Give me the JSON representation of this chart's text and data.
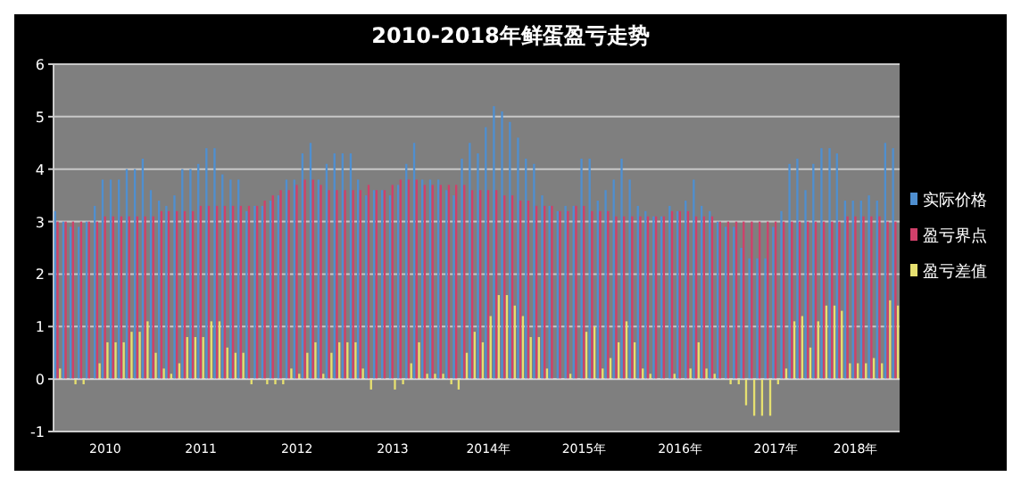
{
  "chart_data": {
    "type": "bar",
    "title": "2010-2018年鲜蛋盈亏走势",
    "x": [
      "2010-01",
      "2010-02",
      "2010-03",
      "2010-04",
      "2010-05",
      "2010-06",
      "2010-07",
      "2010-08",
      "2010-09",
      "2010-10",
      "2010-11",
      "2010-12",
      "2011-01",
      "2011-02",
      "2011-03",
      "2011-04",
      "2011-05",
      "2011-06",
      "2011-07",
      "2011-08",
      "2011-09",
      "2011-10",
      "2011-11",
      "2011-12",
      "2012-01",
      "2012-02",
      "2012-03",
      "2012-04",
      "2012-05",
      "2012-06",
      "2012-07",
      "2012-08",
      "2012-09",
      "2012-10",
      "2012-11",
      "2012-12",
      "2013-01",
      "2013-02",
      "2013-03",
      "2013-04",
      "2013-05",
      "2013-06",
      "2013-07",
      "2013-08",
      "2013-09",
      "2013-10",
      "2013-11",
      "2013-12",
      "2014-01",
      "2014-02",
      "2014-03",
      "2014-04",
      "2014-05",
      "2014-06",
      "2014-07",
      "2014-08",
      "2014-09",
      "2014-10",
      "2014-11",
      "2014-12",
      "2015-01",
      "2015-02",
      "2015-03",
      "2015-04",
      "2015-05",
      "2015-06",
      "2015-07",
      "2015-08",
      "2015-09",
      "2015-10",
      "2015-11",
      "2015-12",
      "2016-01",
      "2016-02",
      "2016-03",
      "2016-04",
      "2016-05",
      "2016-06",
      "2016-07",
      "2016-08",
      "2016-09",
      "2016-10",
      "2016-11",
      "2016-12",
      "2017-01",
      "2017-02",
      "2017-03",
      "2017-04",
      "2017-05",
      "2017-06",
      "2017-07",
      "2017-08",
      "2017-09",
      "2017-10",
      "2017-11",
      "2017-12",
      "2018-01",
      "2018-02",
      "2018-03",
      "2018-04",
      "2018-05",
      "2018-06",
      "2018-07",
      "2018-08",
      "2018-09",
      "2018-10"
    ],
    "series": [
      {
        "name": "实际价格",
        "color": "#4f8fd0",
        "values": [
          3.2,
          3.0,
          2.9,
          2.9,
          3.0,
          3.3,
          3.8,
          3.8,
          3.8,
          4.0,
          4.0,
          4.2,
          3.6,
          3.4,
          3.3,
          3.5,
          4.0,
          4.0,
          4.1,
          4.4,
          4.4,
          3.9,
          3.8,
          3.8,
          3.2,
          3.3,
          3.3,
          3.4,
          3.5,
          3.8,
          3.8,
          4.3,
          4.5,
          3.8,
          4.1,
          4.3,
          4.3,
          4.3,
          3.8,
          3.5,
          3.6,
          3.6,
          3.5,
          3.7,
          4.1,
          4.5,
          3.8,
          3.8,
          3.8,
          3.6,
          3.5,
          4.2,
          4.5,
          4.3,
          4.8,
          5.2,
          5.1,
          4.9,
          4.6,
          4.2,
          4.1,
          3.5,
          3.3,
          3.2,
          3.3,
          3.3,
          4.2,
          4.2,
          3.4,
          3.6,
          3.8,
          4.2,
          3.8,
          3.3,
          3.2,
          3.1,
          3.1,
          3.3,
          3.2,
          3.4,
          3.8,
          3.3,
          3.2,
          3.0,
          2.9,
          2.9,
          2.5,
          2.3,
          2.3,
          2.3,
          2.9,
          3.2,
          4.1,
          4.2,
          3.6,
          4.1,
          4.4,
          4.4,
          4.3,
          3.4,
          3.4,
          3.4,
          3.5,
          3.4,
          4.5,
          4.4
        ]
      },
      {
        "name": "盈亏界点",
        "color": "#d0406a",
        "values": [
          3.0,
          3.0,
          3.0,
          3.0,
          3.0,
          3.0,
          3.1,
          3.1,
          3.1,
          3.1,
          3.1,
          3.1,
          3.1,
          3.2,
          3.2,
          3.2,
          3.2,
          3.2,
          3.3,
          3.3,
          3.3,
          3.3,
          3.3,
          3.3,
          3.3,
          3.3,
          3.4,
          3.5,
          3.6,
          3.6,
          3.7,
          3.8,
          3.8,
          3.7,
          3.6,
          3.6,
          3.6,
          3.6,
          3.6,
          3.7,
          3.6,
          3.6,
          3.7,
          3.8,
          3.8,
          3.8,
          3.7,
          3.7,
          3.7,
          3.7,
          3.7,
          3.7,
          3.6,
          3.6,
          3.6,
          3.6,
          3.5,
          3.5,
          3.4,
          3.4,
          3.3,
          3.3,
          3.3,
          3.2,
          3.2,
          3.3,
          3.3,
          3.2,
          3.2,
          3.2,
          3.1,
          3.1,
          3.1,
          3.1,
          3.1,
          3.1,
          3.1,
          3.2,
          3.2,
          3.2,
          3.1,
          3.1,
          3.1,
          3.0,
          3.0,
          3.0,
          3.0,
          3.0,
          3.0,
          3.0,
          3.0,
          3.0,
          3.0,
          3.0,
          3.0,
          3.0,
          3.0,
          3.0,
          3.0,
          3.1,
          3.1,
          3.1,
          3.1,
          3.1,
          3.0,
          3.0
        ]
      },
      {
        "name": "盈亏差值",
        "color": "#e6e070",
        "values": [
          0.2,
          0,
          -0.1,
          -0.1,
          0,
          0.3,
          0.7,
          0.7,
          0.7,
          0.9,
          0.9,
          1.1,
          0.5,
          0.2,
          0.1,
          0.3,
          0.8,
          0.8,
          0.8,
          1.1,
          1.1,
          0.6,
          0.5,
          0.5,
          -0.1,
          0,
          -0.1,
          -0.1,
          -0.1,
          0.2,
          0.1,
          0.5,
          0.7,
          0.1,
          0.5,
          0.7,
          0.7,
          0.7,
          0.2,
          -0.2,
          0,
          0,
          -0.2,
          -0.1,
          0.3,
          0.7,
          0.1,
          0.1,
          0.1,
          -0.1,
          -0.2,
          0.5,
          0.9,
          0.7,
          1.2,
          1.6,
          1.6,
          1.4,
          1.2,
          0.8,
          0.8,
          0.2,
          0,
          0,
          0.1,
          0,
          0.9,
          1.0,
          0.2,
          0.4,
          0.7,
          1.1,
          0.7,
          0.2,
          0.1,
          0,
          0,
          0.1,
          0,
          0.2,
          0.7,
          0.2,
          0.1,
          0,
          -0.1,
          -0.1,
          -0.5,
          -0.7,
          -0.7,
          -0.7,
          -0.1,
          0.2,
          1.1,
          1.2,
          0.6,
          1.1,
          1.4,
          1.4,
          1.3,
          0.3,
          0.3,
          0.3,
          0.4,
          0.3,
          1.5,
          1.4
        ]
      }
    ],
    "xlim": [
      "2009-12-16",
      "2018-10-16"
    ],
    "xticks": [
      {
        "value": "2010-07",
        "label": "2010"
      },
      {
        "value": "2011-07",
        "label": "2011"
      },
      {
        "value": "2012-07",
        "label": "2012"
      },
      {
        "value": "2013-07",
        "label": "2013"
      },
      {
        "value": "2014-07",
        "label": "2014年"
      },
      {
        "value": "2015-07",
        "label": "2015年"
      },
      {
        "value": "2016-07",
        "label": "2016年"
      },
      {
        "value": "2017-07",
        "label": "2017年"
      },
      {
        "value": "2018-05",
        "label": "2018年"
      }
    ],
    "ylim": [
      -1,
      6
    ],
    "yticks": [
      -1,
      0,
      1,
      2,
      3,
      4,
      5,
      6
    ],
    "grid": "y",
    "legend": "right"
  }
}
